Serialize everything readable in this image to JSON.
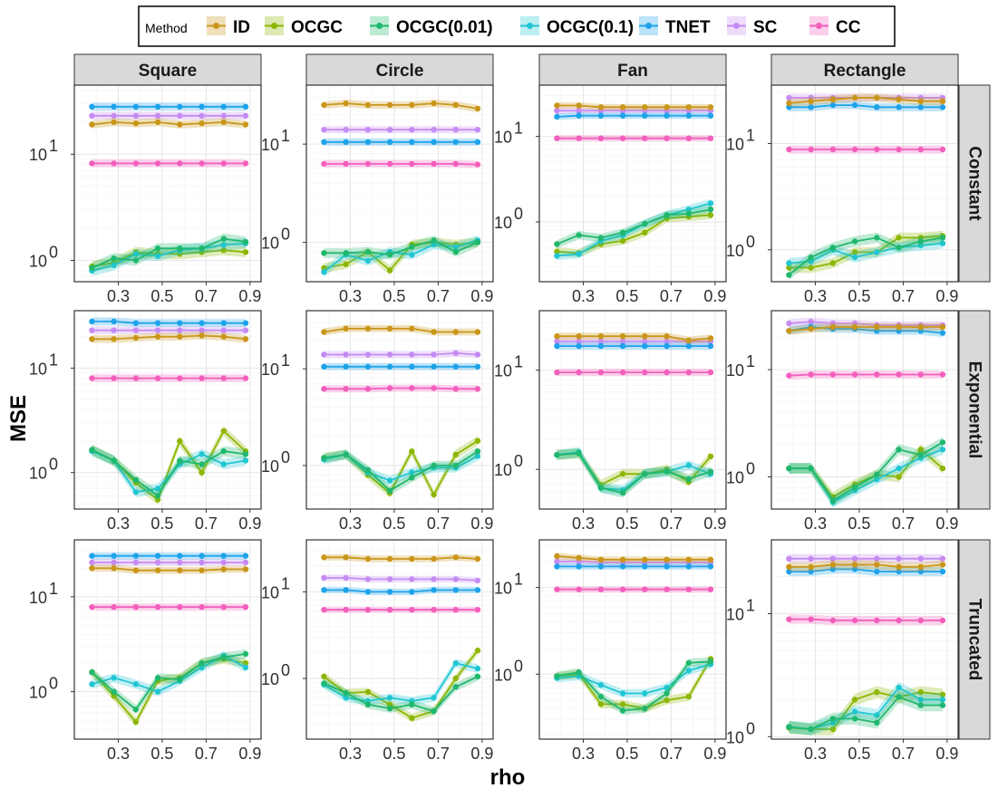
{
  "chart_data": {
    "type": "line",
    "xlabel": "rho",
    "ylabel": "MSE",
    "yscale": "log10",
    "x": [
      0.18,
      0.28,
      0.38,
      0.48,
      0.58,
      0.68,
      0.78,
      0.88
    ],
    "x_ticks": [
      "0.3",
      "0.5",
      "0.7",
      "0.9"
    ],
    "x_tick_values": [
      0.3,
      0.5,
      0.7,
      0.9
    ],
    "xlim": [
      0.1,
      0.95
    ],
    "y_tick_labels": {
      "1": "10",
      "0": "10"
    },
    "legend": {
      "title": "Method",
      "entries": [
        {
          "name": "ID",
          "color": "#C9961A"
        },
        {
          "name": "OCGC",
          "color": "#8DB600"
        },
        {
          "name": "OCGC(0.01)",
          "color": "#20B86E"
        },
        {
          "name": "OCGC(0.1)",
          "color": "#22C6D3"
        },
        {
          "name": "TNET",
          "color": "#1EA3EA"
        },
        {
          "name": "SC",
          "color": "#C68BF2"
        },
        {
          "name": "CC",
          "color": "#F25FBC"
        }
      ]
    },
    "columns": [
      "Square",
      "Circle",
      "Fan",
      "Rectangle"
    ],
    "rows": [
      "Constant",
      "Exponential",
      "Truncated"
    ],
    "panels": [
      {
        "row": "Constant",
        "col": "Square",
        "ylim": [
          -0.2,
          1.65
        ],
        "series": {
          "ID": [
            19,
            20,
            19.5,
            20,
            19,
            19.5,
            20,
            19
          ],
          "SC": [
            23,
            23,
            23,
            23,
            23,
            23,
            23,
            23
          ],
          "TNET": [
            28,
            28,
            28,
            28,
            28,
            28,
            28,
            28
          ],
          "CC": [
            8.2,
            8.2,
            8.2,
            8.2,
            8.2,
            8.2,
            8.2,
            8.2
          ],
          "OCGC": [
            0.88,
            0.95,
            1.2,
            1.15,
            1.15,
            1.2,
            1.25,
            1.2
          ],
          "OCGC(0.01)": [
            0.85,
            1.05,
            1.0,
            1.3,
            1.3,
            1.3,
            1.6,
            1.5
          ],
          "OCGC(0.1)": [
            0.8,
            0.9,
            1.15,
            1.1,
            1.25,
            1.3,
            1.4,
            1.45
          ]
        }
      },
      {
        "row": "Constant",
        "col": "Circle",
        "ylim": [
          -0.4,
          1.6
        ],
        "series": {
          "ID": [
            25,
            26,
            25,
            25,
            25,
            26,
            25,
            23
          ],
          "SC": [
            14,
            14,
            14,
            14,
            14,
            14,
            14,
            14
          ],
          "TNET": [
            10.5,
            10.5,
            10.5,
            10.5,
            10.5,
            10.5,
            10.5,
            10.5
          ],
          "CC": [
            6.3,
            6.3,
            6.3,
            6.3,
            6.3,
            6.3,
            6.3,
            6.2
          ],
          "OCGC": [
            0.55,
            0.6,
            0.8,
            0.52,
            0.95,
            1.0,
            0.95,
            1.0
          ],
          "OCGC(0.01)": [
            0.78,
            0.78,
            0.8,
            0.75,
            0.9,
            1.05,
            0.8,
            1.0
          ],
          "OCGC(0.1)": [
            0.5,
            0.75,
            0.65,
            0.8,
            0.75,
            0.95,
            0.9,
            1.05
          ]
        }
      },
      {
        "row": "Constant",
        "col": "Fan",
        "ylim": [
          -0.7,
          1.6
        ],
        "series": {
          "ID": [
            23,
            23,
            22,
            22,
            22,
            22,
            22,
            22
          ],
          "SC": [
            20,
            20,
            20,
            20,
            20,
            20,
            20,
            20
          ],
          "TNET": [
            17,
            17.5,
            17.5,
            17.5,
            17.5,
            17.5,
            17.5,
            17.5
          ],
          "CC": [
            9.5,
            9.5,
            9.5,
            9.5,
            9.5,
            9.5,
            9.5,
            9.5
          ],
          "OCGC": [
            0.45,
            0.43,
            0.55,
            0.6,
            0.75,
            1.1,
            1.15,
            1.2
          ],
          "OCGC(0.01)": [
            0.55,
            0.7,
            0.65,
            0.75,
            0.95,
            1.2,
            1.25,
            1.4
          ],
          "OCGC(0.1)": [
            0.4,
            0.42,
            0.6,
            0.7,
            0.95,
            1.2,
            1.4,
            1.65
          ]
        }
      },
      {
        "row": "Constant",
        "col": "Rectangle",
        "ylim": [
          -0.3,
          1.55
        ],
        "series": {
          "ID": [
            24,
            25,
            26,
            27,
            27,
            26,
            25,
            25
          ],
          "SC": [
            27,
            27,
            27,
            27,
            27,
            27,
            27,
            27
          ],
          "TNET": [
            22,
            22,
            23,
            23,
            22,
            22,
            22,
            22
          ],
          "CC": [
            8.8,
            8.8,
            8.8,
            8.8,
            8.8,
            8.8,
            8.8,
            8.8
          ],
          "OCGC": [
            0.68,
            0.68,
            0.75,
            0.95,
            0.95,
            1.3,
            1.3,
            1.35
          ],
          "OCGC(0.01)": [
            0.58,
            0.85,
            1.05,
            1.2,
            1.3,
            1.05,
            1.2,
            1.3
          ],
          "OCGC(0.1)": [
            0.75,
            0.78,
            1.0,
            0.85,
            0.95,
            1.05,
            1.1,
            1.15
          ]
        }
      },
      {
        "row": "Exponential",
        "col": "Square",
        "ylim": [
          -0.35,
          1.55
        ],
        "series": {
          "ID": [
            19,
            19,
            19.5,
            20,
            20,
            20.5,
            20,
            19
          ],
          "SC": [
            23,
            23,
            23,
            23,
            23,
            23,
            23,
            23
          ],
          "TNET": [
            28,
            28,
            27,
            27,
            27,
            27,
            27,
            27
          ],
          "CC": [
            8.0,
            8.0,
            8.0,
            8.0,
            8.0,
            8.0,
            8.0,
            8.0
          ],
          "OCGC": [
            1.65,
            1.3,
            0.8,
            0.55,
            2.0,
            1.0,
            2.5,
            1.6
          ],
          "OCGC(0.01)": [
            1.65,
            1.3,
            0.85,
            0.6,
            1.3,
            1.2,
            1.6,
            1.5
          ],
          "OCGC(0.1)": [
            1.6,
            1.3,
            0.65,
            0.7,
            1.2,
            1.5,
            1.2,
            1.3
          ]
        }
      },
      {
        "row": "Exponential",
        "col": "Circle",
        "ylim": [
          -0.45,
          1.6
        ],
        "series": {
          "ID": [
            24,
            26,
            26,
            26,
            26,
            24,
            24,
            24
          ],
          "SC": [
            14,
            14,
            14,
            14,
            14,
            14,
            14.5,
            14
          ],
          "TNET": [
            10.5,
            10.5,
            10.5,
            10.5,
            10.5,
            10.5,
            10.5,
            10.5
          ],
          "CC": [
            6.2,
            6.2,
            6.2,
            6.3,
            6.3,
            6.3,
            6.2,
            6.2
          ],
          "OCGC": [
            1.2,
            1.3,
            0.8,
            0.52,
            1.4,
            0.5,
            1.3,
            1.8
          ],
          "OCGC(0.01)": [
            1.2,
            1.3,
            0.9,
            0.55,
            0.75,
            1.0,
            1.0,
            1.4
          ],
          "OCGC(0.1)": [
            1.15,
            1.3,
            0.85,
            0.7,
            0.85,
            0.95,
            0.95,
            1.25
          ]
        }
      },
      {
        "row": "Exponential",
        "col": "Fan",
        "ylim": [
          -0.4,
          1.6
        ],
        "series": {
          "ID": [
            22,
            22,
            22,
            22,
            22,
            22,
            20,
            21
          ],
          "SC": [
            19.5,
            19.5,
            19.5,
            19.5,
            19.5,
            19.5,
            19.5,
            19.5
          ],
          "TNET": [
            17.5,
            17.5,
            17.5,
            17.5,
            17.5,
            17.5,
            17.5,
            17.5
          ],
          "CC": [
            9.5,
            9.5,
            9.5,
            9.5,
            9.5,
            9.5,
            9.5,
            9.5
          ],
          "OCGC": [
            1.4,
            1.45,
            0.7,
            0.9,
            0.9,
            1.0,
            0.75,
            1.35
          ],
          "OCGC(0.01)": [
            1.4,
            1.45,
            0.65,
            0.58,
            0.9,
            0.95,
            0.8,
            0.95
          ],
          "OCGC(0.1)": [
            1.4,
            1.5,
            0.65,
            0.62,
            0.9,
            0.95,
            1.1,
            0.9
          ]
        }
      },
      {
        "row": "Exponential",
        "col": "Rectangle",
        "ylim": [
          -0.3,
          1.55
        ],
        "series": {
          "ID": [
            23,
            24,
            25,
            25,
            25,
            25,
            25,
            25
          ],
          "SC": [
            27,
            28,
            27,
            27,
            26,
            26,
            26,
            26
          ],
          "TNET": [
            23,
            25,
            24,
            24,
            23,
            23,
            23,
            22
          ],
          "CC": [
            8.8,
            9.0,
            9.0,
            9.0,
            9.0,
            9.0,
            9.0,
            9.0
          ],
          "OCGC": [
            1.2,
            1.2,
            0.65,
            0.85,
            1.05,
            1.0,
            1.8,
            1.2
          ],
          "OCGC(0.01)": [
            1.2,
            1.2,
            0.6,
            0.8,
            1.05,
            1.8,
            1.6,
            2.1
          ],
          "OCGC(0.1)": [
            1.2,
            1.2,
            0.58,
            0.75,
            0.95,
            1.2,
            1.5,
            1.8
          ]
        }
      },
      {
        "row": "Truncated",
        "col": "Square",
        "ylim": [
          -0.5,
          1.6
        ],
        "series": {
          "ID": [
            20,
            20,
            19,
            19,
            19,
            19,
            19.5,
            19.5
          ],
          "SC": [
            23,
            23,
            23,
            23,
            23,
            23,
            23,
            23
          ],
          "TNET": [
            27,
            27,
            27,
            27,
            27,
            27,
            27,
            27
          ],
          "CC": [
            7.8,
            7.8,
            7.8,
            7.8,
            7.8,
            7.8,
            7.8,
            7.8
          ],
          "OCGC": [
            1.6,
            0.9,
            0.48,
            1.3,
            1.4,
            2.0,
            2.2,
            2.0
          ],
          "OCGC(0.01)": [
            1.6,
            1.0,
            0.65,
            1.4,
            1.35,
            2.0,
            2.3,
            2.5
          ],
          "OCGC(0.1)": [
            1.2,
            1.4,
            1.2,
            1.0,
            1.3,
            1.8,
            2.4,
            1.8
          ]
        }
      },
      {
        "row": "Truncated",
        "col": "Circle",
        "ylim": [
          -0.7,
          1.6
        ],
        "series": {
          "ID": [
            25,
            25,
            24,
            24,
            24,
            24,
            25,
            24
          ],
          "SC": [
            14.5,
            14.5,
            14,
            14,
            14,
            14,
            14,
            13.5
          ],
          "TNET": [
            10.5,
            10.5,
            10,
            10,
            10,
            10.5,
            10.5,
            10.5
          ],
          "CC": [
            6.2,
            6.2,
            6.2,
            6.2,
            6.2,
            6.2,
            6.2,
            6.2
          ],
          "OCGC": [
            1.05,
            0.68,
            0.7,
            0.5,
            0.35,
            0.42,
            1.0,
            2.1
          ],
          "OCGC(0.01)": [
            0.88,
            0.68,
            0.5,
            0.45,
            0.5,
            0.42,
            0.8,
            1.05
          ],
          "OCGC(0.1)": [
            0.85,
            0.6,
            0.55,
            0.6,
            0.55,
            0.6,
            1.5,
            1.3
          ]
        }
      },
      {
        "row": "Truncated",
        "col": "Fan",
        "ylim": [
          -0.75,
          1.55
        ],
        "series": {
          "ID": [
            23,
            22,
            21,
            21,
            21,
            21,
            21,
            21
          ],
          "SC": [
            20,
            20,
            19.5,
            19.5,
            19.5,
            19.5,
            19.5,
            19.5
          ],
          "TNET": [
            17.5,
            17.5,
            17.5,
            17.5,
            17.5,
            17.5,
            17.5,
            17.5
          ],
          "CC": [
            9.5,
            9.5,
            9.5,
            9.5,
            9.5,
            9.5,
            9.5,
            9.5
          ],
          "OCGC": [
            0.95,
            1.0,
            0.45,
            0.45,
            0.4,
            0.5,
            0.55,
            1.5
          ],
          "OCGC(0.01)": [
            0.95,
            1.05,
            0.55,
            0.38,
            0.4,
            0.6,
            1.35,
            1.4
          ],
          "OCGC(0.1)": [
            0.9,
            0.95,
            0.75,
            0.6,
            0.6,
            0.7,
            1.1,
            1.3
          ]
        }
      },
      {
        "row": "Truncated",
        "col": "Rectangle",
        "ylim": [
          -0.02,
          1.6
        ],
        "series": {
          "ID": [
            24,
            24,
            25,
            25,
            25,
            24,
            24,
            25
          ],
          "SC": [
            28,
            28,
            28,
            28,
            28,
            28,
            28,
            28
          ],
          "TNET": [
            22,
            22,
            23,
            23,
            22,
            22,
            22,
            22
          ],
          "CC": [
            9.0,
            9.0,
            8.8,
            8.8,
            8.8,
            8.8,
            8.8,
            8.8
          ],
          "OCGC": [
            1.18,
            1.15,
            1.15,
            2.0,
            2.3,
            2.1,
            2.3,
            2.2
          ],
          "OCGC(0.01)": [
            1.2,
            1.15,
            1.4,
            1.4,
            1.3,
            2.1,
            1.8,
            1.8
          ],
          "OCGC(0.1)": [
            1.2,
            1.15,
            1.3,
            1.6,
            1.5,
            2.5,
            2.0,
            2.0
          ]
        }
      }
    ]
  }
}
